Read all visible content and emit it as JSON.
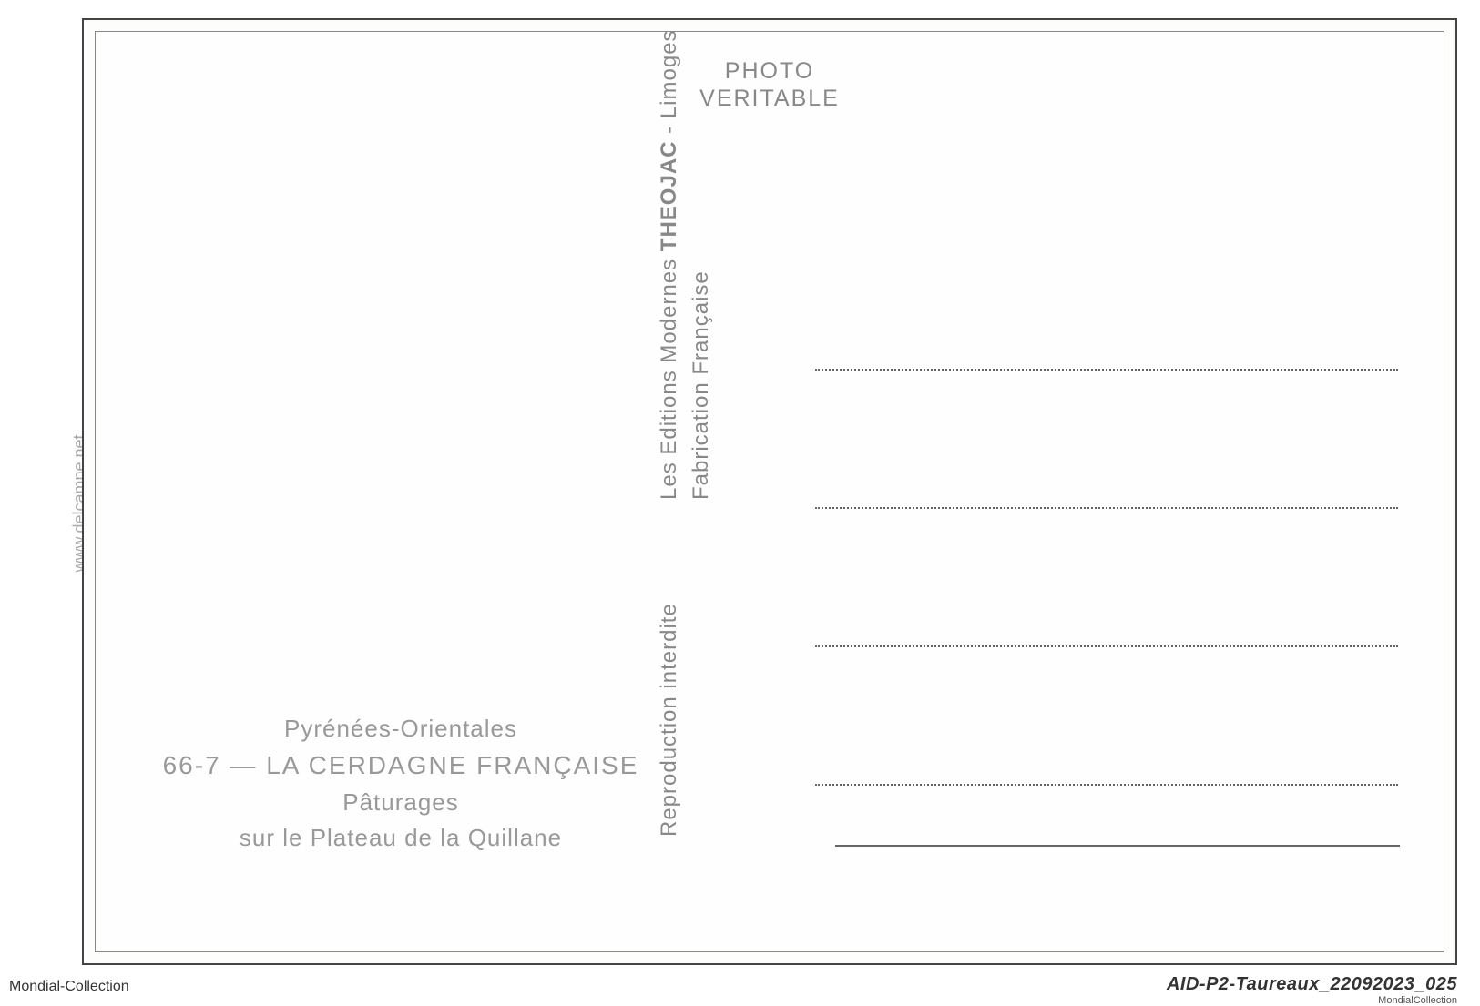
{
  "header": {
    "line1": "PHOTO",
    "line2": "VERITABLE"
  },
  "publisher": {
    "line1_part1": "Les Editions Modernes ",
    "line1_theojac": "THEOJAC",
    "line1_part2": " - Limoges",
    "line2_part1": "Reproduction interdite",
    "line2_part2": "Fabrication Française"
  },
  "caption": {
    "region": "Pyrénées-Orientales",
    "number": "66-7",
    "separator": " — ",
    "title": "LA CERDAGNE FRANÇAISE",
    "subtitle1": "Pâturages",
    "subtitle2": "sur le Plateau de la Quillane"
  },
  "watermark": "www.delcampe.net",
  "footer": {
    "left": "Mondial-Collection",
    "right": "AID-P2-Taureaux_22092023_025",
    "right_sub": "MondialCollection"
  }
}
